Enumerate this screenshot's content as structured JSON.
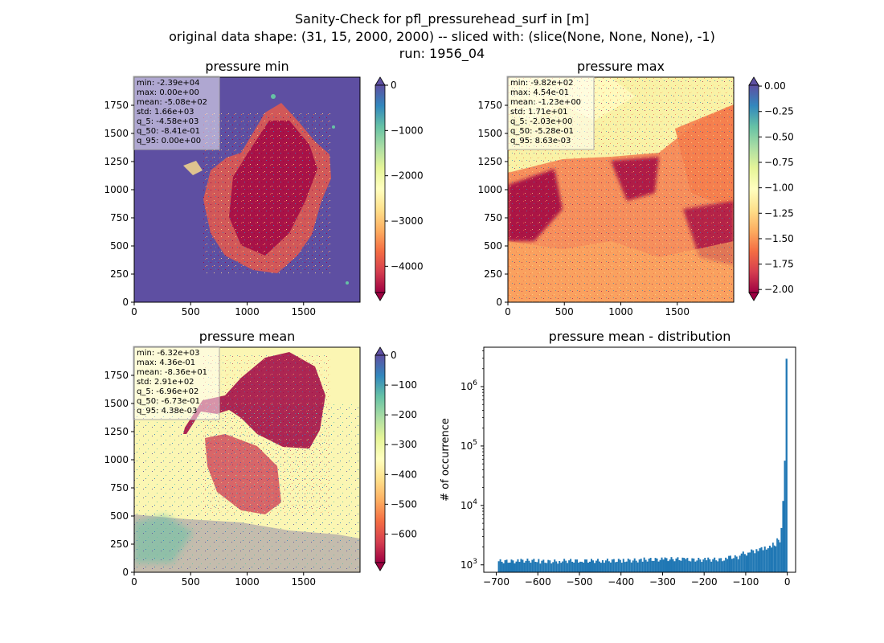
{
  "figure": {
    "title_line1": "Sanity-Check for pfl_pressurehead_surf in [m]",
    "title_line2": "original data shape: (31, 15, 2000, 2000) -- sliced with: (slice(None, None, None), -1)",
    "title_line3": "run: 1956_04"
  },
  "panels": {
    "min": {
      "title": "pressure min",
      "stats": [
        "min: -2.39e+04",
        "max: 0.00e+00",
        "mean: -5.08e+02",
        "std: 1.66e+03",
        "q_5: -4.58e+03",
        "q_50: -8.41e-01",
        "q_95: 0.00e+00"
      ],
      "colorbar": {
        "ticks": [
          0,
          -1000,
          -2000,
          -3000,
          -4000
        ],
        "tick_labels": [
          "0",
          "−1000",
          "−2000",
          "−3000",
          "−4000"
        ],
        "range": [
          -4580,
          0
        ],
        "extend": "both"
      },
      "background_color": "#5e4fa2"
    },
    "max": {
      "title": "pressure max",
      "stats": [
        "min: -9.82e+02",
        "max: 4.54e-01",
        "mean: -1.23e+00",
        "std: 1.71e+01",
        "q_5: -2.03e+00",
        "q_50: -5.28e-01",
        "q_95: 8.63e-03"
      ],
      "colorbar": {
        "ticks": [
          0,
          -0.25,
          -0.5,
          -0.75,
          -1.0,
          -1.25,
          -1.5,
          -1.75,
          -2.0
        ],
        "tick_labels": [
          "0.00",
          "−0.25",
          "−0.50",
          "−0.75",
          "−1.00",
          "−1.25",
          "−1.50",
          "−1.75",
          "−2.00"
        ],
        "range": [
          -2.03,
          0.0086
        ],
        "extend": "both"
      },
      "background_color": "#f9f2a6"
    },
    "mean": {
      "title": "pressure mean",
      "stats": [
        "min: -6.32e+03",
        "max: 4.36e-01",
        "mean: -8.36e+01",
        "std: 2.91e+02",
        "q_5: -6.96e+02",
        "q_50: -6.73e-01",
        "q_95: 4.38e-03"
      ],
      "colorbar": {
        "ticks": [
          0,
          -100,
          -200,
          -300,
          -400,
          -500,
          -600
        ],
        "tick_labels": [
          "0",
          "−100",
          "−200",
          "−300",
          "−400",
          "−500",
          "−600"
        ],
        "range": [
          -696,
          0.0044
        ],
        "extend": "both"
      },
      "background_color": "#fbf6b3"
    },
    "map_axes": {
      "x_ticks": [
        0,
        500,
        1000,
        1500
      ],
      "x_tick_labels": [
        "0",
        "500",
        "1000",
        "1500"
      ],
      "y_ticks": [
        0,
        250,
        500,
        750,
        1000,
        1250,
        1500,
        1750
      ],
      "y_tick_labels": [
        "0",
        "250",
        "500",
        "750",
        "1000",
        "1250",
        "1500",
        "1750"
      ],
      "xlim": [
        0,
        2000
      ],
      "ylim": [
        0,
        2000
      ]
    }
  },
  "chart_data": {
    "type": "bar",
    "title": "pressure mean - distribution",
    "xlabel": "",
    "ylabel": "# of occurrence",
    "yscale": "log",
    "xlim": [
      -730,
      20
    ],
    "ylim": [
      750,
      4600000
    ],
    "x_ticks": [
      -700,
      -600,
      -500,
      -400,
      -300,
      -200,
      -100,
      0
    ],
    "x_tick_labels": [
      "−700",
      "−600",
      "−500",
      "−400",
      "−300",
      "−200",
      "−100",
      "0"
    ],
    "y_ticks": [
      1000,
      10000,
      100000,
      1000000
    ],
    "y_tick_base": "10",
    "y_tick_exponents": [
      "3",
      "4",
      "5",
      "6"
    ],
    "bar_color": "#1f77b4",
    "bins": [
      {
        "x0": -696,
        "x1": -646,
        "count": 1150
      },
      {
        "x0": -646,
        "x1": -596,
        "count": 1180
      },
      {
        "x0": -596,
        "x1": -546,
        "count": 1140
      },
      {
        "x0": -546,
        "x1": -496,
        "count": 1170
      },
      {
        "x0": -496,
        "x1": -446,
        "count": 1170
      },
      {
        "x0": -446,
        "x1": -396,
        "count": 1180
      },
      {
        "x0": -396,
        "x1": -346,
        "count": 1190
      },
      {
        "x0": -346,
        "x1": -296,
        "count": 1230
      },
      {
        "x0": -296,
        "x1": -246,
        "count": 1250
      },
      {
        "x0": -246,
        "x1": -196,
        "count": 1220
      },
      {
        "x0": -196,
        "x1": -146,
        "count": 1230
      },
      {
        "x0": -146,
        "x1": -116,
        "count": 1350
      },
      {
        "x0": -116,
        "x1": -96,
        "count": 1550
      },
      {
        "x0": -96,
        "x1": -76,
        "count": 1700
      },
      {
        "x0": -76,
        "x1": -56,
        "count": 1850
      },
      {
        "x0": -56,
        "x1": -36,
        "count": 1950
      },
      {
        "x0": -36,
        "x1": -26,
        "count": 2200
      },
      {
        "x0": -26,
        "x1": -16,
        "count": 2600
      },
      {
        "x0": -16,
        "x1": -12,
        "count": 4000
      },
      {
        "x0": -12,
        "x1": -8,
        "count": 12000
      },
      {
        "x0": -8,
        "x1": -4,
        "count": 60000
      },
      {
        "x0": -4,
        "x1": 0.4,
        "count": 3200000
      }
    ]
  }
}
